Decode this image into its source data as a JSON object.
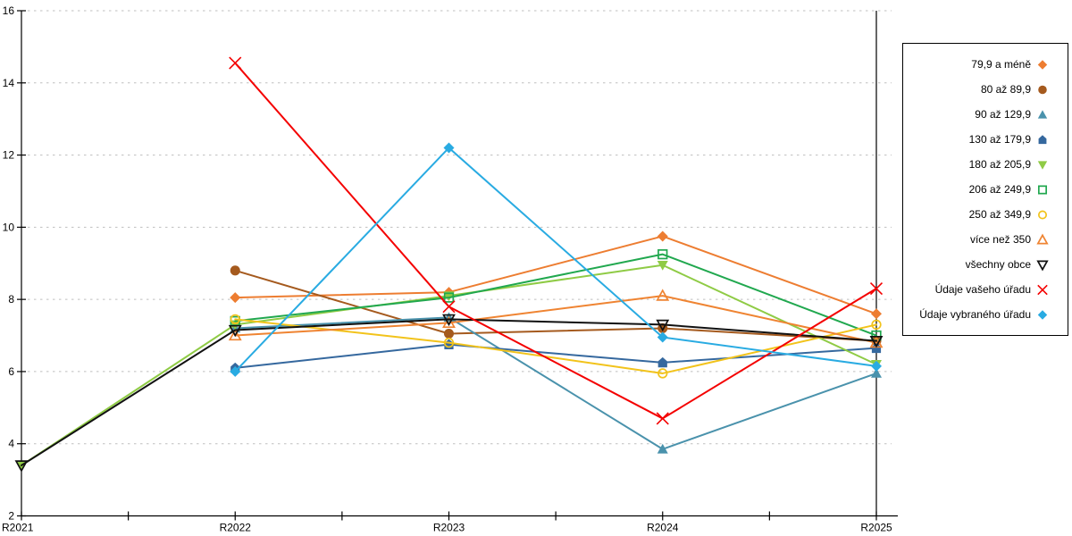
{
  "chart_data": {
    "type": "line",
    "title": "",
    "xlabel": "",
    "ylabel": "",
    "categories": [
      "R2021",
      "R2022",
      "R2023",
      "R2024",
      "R2025"
    ],
    "ylim": [
      2,
      16
    ],
    "y_tick_interval": 2,
    "y_tick_labels": [
      "2",
      "4",
      "6",
      "8",
      "10",
      "12",
      "14",
      "16"
    ],
    "grid": "horizontal-dashed",
    "legend_position": "right",
    "colors": {
      "grid": "#BFBFBF",
      "axis": "#000000",
      "background": "#FFFFFF"
    },
    "series": [
      {
        "name": "79,9 a méně",
        "marker": "diamond",
        "fill": "solid",
        "color": "#ED7D31",
        "values": [
          null,
          8.05,
          8.2,
          9.75,
          7.6
        ]
      },
      {
        "name": "80 až 89,9",
        "marker": "circle",
        "fill": "solid",
        "color": "#A55A1E",
        "values": [
          null,
          8.8,
          7.05,
          7.2,
          6.85
        ]
      },
      {
        "name": "90 až 129,9",
        "marker": "triangle-up",
        "fill": "solid",
        "color": "#4A92AC",
        "values": [
          null,
          7.2,
          7.5,
          3.85,
          5.95
        ]
      },
      {
        "name": "130 až 179,9",
        "marker": "pentagon",
        "fill": "solid",
        "color": "#35689E",
        "values": [
          null,
          6.1,
          6.75,
          6.25,
          6.65
        ]
      },
      {
        "name": "180 až 205,9",
        "marker": "triangle-down",
        "fill": "solid",
        "color": "#8FCB45",
        "values": [
          3.4,
          7.3,
          8.1,
          8.95,
          6.2
        ]
      },
      {
        "name": "206 až 249,9",
        "marker": "square",
        "fill": "open",
        "color": "#21A84F",
        "values": [
          null,
          7.4,
          8.05,
          9.25,
          7.0
        ]
      },
      {
        "name": "250 až 349,9",
        "marker": "circle",
        "fill": "open",
        "color": "#F2C31B",
        "values": [
          null,
          7.45,
          6.8,
          5.95,
          7.3
        ]
      },
      {
        "name": "více než 350",
        "marker": "triangle-up",
        "fill": "open",
        "color": "#EF8432",
        "values": [
          null,
          7.0,
          7.35,
          8.1,
          6.8
        ]
      },
      {
        "name": "všechny obce",
        "marker": "triangle-down",
        "fill": "open",
        "color": "#111111",
        "values": [
          3.4,
          7.15,
          7.45,
          7.3,
          6.85
        ]
      },
      {
        "name": "Údaje vašeho úřadu",
        "marker": "x",
        "fill": "open",
        "color": "#F40000",
        "values": [
          null,
          14.55,
          7.8,
          4.7,
          8.3
        ]
      },
      {
        "name": "Údaje vybraného úřadu",
        "marker": "diamond",
        "fill": "solid",
        "color": "#29ABE2",
        "values": [
          null,
          6.0,
          12.2,
          6.95,
          6.15
        ]
      }
    ]
  }
}
